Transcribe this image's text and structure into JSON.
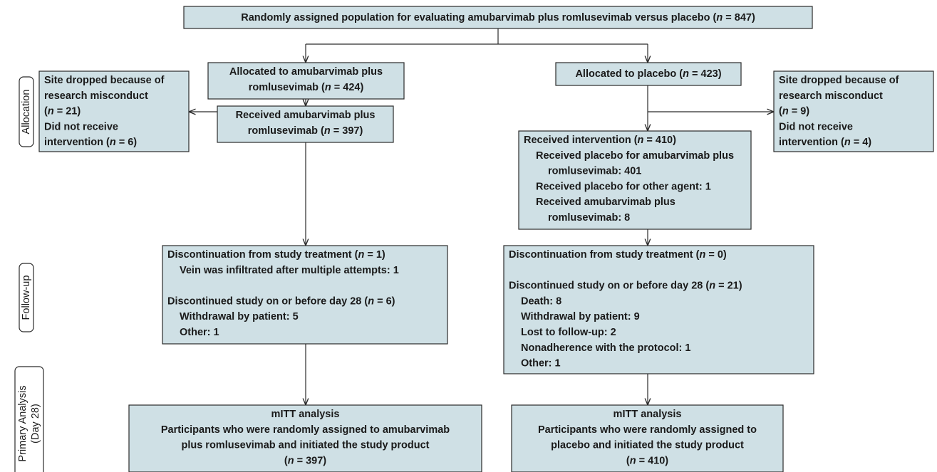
{
  "side_labels": [
    [
      "Allocation"
    ],
    [
      "Follow-up"
    ],
    [
      "Primary Analysis",
      "(Day 28)"
    ]
  ],
  "boxes": [
    {
      "lines": [
        [
          "Randomly assigned population for evaluating amubarvimab plus romlusevimab versus placebo (",
          "n",
          " = 847)"
        ]
      ]
    },
    {
      "lines": [
        [
          "Allocated to amubarvimab plus"
        ],
        [
          "romlusevimab (",
          "n",
          " = 424)"
        ]
      ]
    },
    {
      "lines": [
        [
          "Allocated to placebo (",
          "n",
          " = 423)"
        ]
      ]
    },
    {
      "lines": [
        [
          "Site dropped because of"
        ],
        [
          "research misconduct"
        ],
        [
          "(",
          "n",
          " = 21)"
        ],
        [
          "Did not receive"
        ],
        [
          "intervention (",
          "n",
          " = 6)"
        ]
      ]
    },
    {
      "lines": [
        [
          "Site dropped because of"
        ],
        [
          "research misconduct"
        ],
        [
          "(",
          "n",
          " = 9)"
        ],
        [
          "Did not receive"
        ],
        [
          "intervention (",
          "n",
          " = 4)"
        ]
      ]
    },
    {
      "lines": [
        [
          "Received amubarvimab plus"
        ],
        [
          "romlusevimab (",
          "n",
          " = 397)"
        ]
      ]
    },
    {
      "lines": [
        [
          "Received intervention (",
          "n",
          " = 410)"
        ],
        [
          "Received placebo for amubarvimab plus"
        ],
        [
          "romlusevimab: 401"
        ],
        [
          "Received placebo for other agent: 1"
        ],
        [
          "Received amubarvimab plus"
        ],
        [
          "romlusevimab: 8"
        ]
      ]
    },
    {
      "lines": [
        [
          "Discontinuation from study treatment (",
          "n",
          " = 1)"
        ],
        [
          "Vein was infiltrated after multiple attempts: 1"
        ],
        [
          "Discontinued study on or before day 28 (",
          "n",
          " = 6)"
        ],
        [
          "Withdrawal by patient: 5"
        ],
        [
          "Other: 1"
        ]
      ]
    },
    {
      "lines": [
        [
          "Discontinuation from study treatment (",
          "n",
          " = 0)"
        ],
        [
          "Discontinued study on or before day 28 (",
          "n",
          " = 21)"
        ],
        [
          "Death: 8"
        ],
        [
          "Withdrawal by patient: 9"
        ],
        [
          "Lost to follow-up: 2"
        ],
        [
          "Nonadherence with the protocol: 1"
        ],
        [
          "Other: 1"
        ]
      ]
    },
    {
      "lines": [
        [
          "mITT analysis"
        ],
        [
          "Participants who were randomly assigned to amubarvimab"
        ],
        [
          "plus romlusevimab and initiated the study product"
        ],
        [
          "(",
          "n",
          " = 397)"
        ]
      ]
    },
    {
      "lines": [
        [
          "mITT analysis"
        ],
        [
          "Participants who were randomly assigned to"
        ],
        [
          "placebo and initiated the study product"
        ],
        [
          "(",
          "n",
          " = 410)"
        ]
      ]
    }
  ]
}
